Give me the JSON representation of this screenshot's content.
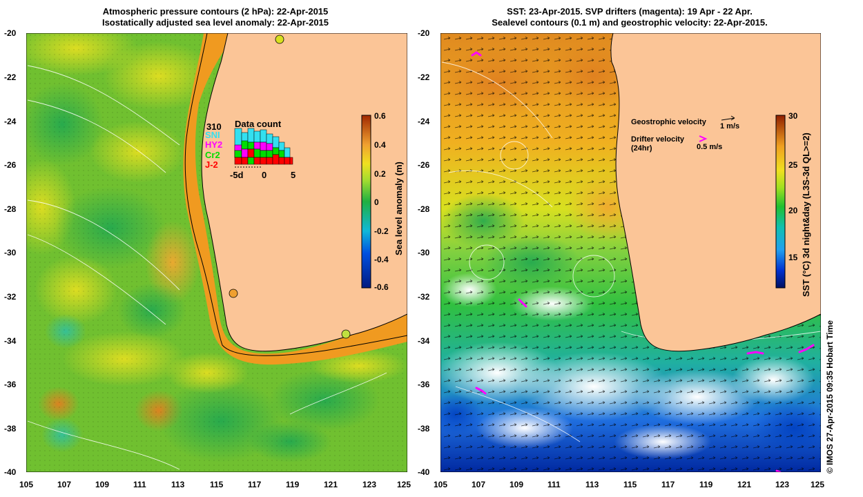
{
  "left_panel": {
    "title_line1": "Atmospheric pressure contours (2 hPa): 22-Apr-2015",
    "title_line2": "Isostatically adjusted sea level anomaly: 22-Apr-2015",
    "y_ticks": [
      "-20",
      "-22",
      "-24",
      "-26",
      "-28",
      "-30",
      "-32",
      "-34",
      "-36",
      "-38",
      "-40"
    ],
    "x_ticks": [
      "105",
      "107",
      "109",
      "111",
      "113",
      "115",
      "117",
      "119",
      "121",
      "123",
      "125"
    ],
    "colorbar": {
      "label": "Sea level anomaly (m)",
      "ticks": [
        "0.6",
        "0.4",
        "0.2",
        "0",
        "-0.2",
        "-0.4",
        "-0.6"
      ],
      "range": [
        -0.6,
        0.6
      ]
    },
    "inset": {
      "count": "310",
      "title": "Data count",
      "legend": [
        "SNI",
        "HY2",
        "Cr2",
        "J-2"
      ],
      "legend_colors": [
        "#33e0f0",
        "#ff00ff",
        "#00dd00",
        "#ff0000"
      ],
      "x_ticks": [
        "-5d",
        "0",
        "5"
      ]
    }
  },
  "right_panel": {
    "title_line1": "SST: 23-Apr-2015. SVP drifters (magenta): 19 Apr - 22 Apr.",
    "title_line2": "Sealevel contours (0.1 m) and geostrophic velocity: 22-Apr-2015.",
    "y_ticks": [
      "-20",
      "-22",
      "-24",
      "-26",
      "-28",
      "-30",
      "-32",
      "-34",
      "-36",
      "-38",
      "-40"
    ],
    "x_ticks": [
      "105",
      "107",
      "109",
      "111",
      "113",
      "115",
      "117",
      "119",
      "121",
      "123",
      "125"
    ],
    "colorbar": {
      "label": "SST (°C) 3d night&day (L3S-3d QL>=2)",
      "ticks": [
        "30",
        "25",
        "20",
        "15"
      ],
      "range": [
        11,
        30
      ]
    },
    "legend": {
      "geo_label": "Geostrophic velocity",
      "geo_scale": "1 m/s",
      "drifter_label": "Drifter velocity",
      "drifter_sub": "(24hr)",
      "drifter_scale": "0.5 m/s"
    }
  },
  "credit": "© IMOS 27-Apr-2015 09:35 Hobart Time",
  "colors": {
    "land": "#fbc597",
    "drifter": "#ff00ff",
    "sla_positive": "#f0a030",
    "sla_zero": "#30b030"
  }
}
